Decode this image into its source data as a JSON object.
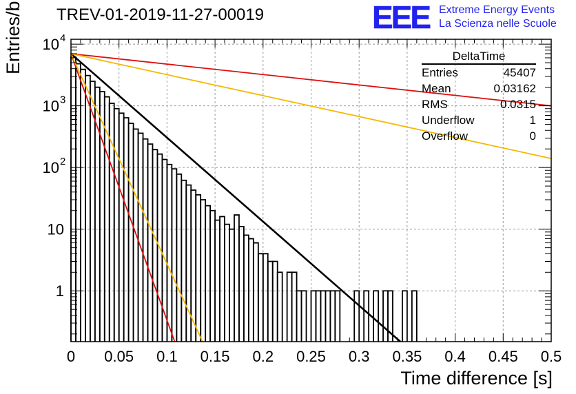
{
  "title": "TREV-01-2019-11-27-00019",
  "logo": {
    "mark": "EEE",
    "line1": "Extreme Energy Events",
    "line2": "La Scienza nelle Scuole",
    "color": "#2222ee"
  },
  "stats_box": {
    "title": "DeltaTime",
    "rows": [
      {
        "label": "Entries",
        "value": "45407"
      },
      {
        "label": "Mean",
        "value": "0.03162"
      },
      {
        "label": "RMS",
        "value": "0.0315"
      },
      {
        "label": "Underflow",
        "value": "1"
      },
      {
        "label": "Overflow",
        "value": "0"
      }
    ]
  },
  "chart_data": {
    "type": "line",
    "title": "TREV-01-2019-11-27-00019",
    "xlabel": "Time difference [s]",
    "ylabel": "Entries/bin",
    "xlim": [
      0,
      0.5
    ],
    "ylim": [
      0.15,
      12000
    ],
    "log_y": true,
    "grid": true,
    "x_ticks": [
      0,
      0.05,
      0.1,
      0.15,
      0.2,
      0.25,
      0.3,
      0.35,
      0.4,
      0.45,
      0.5
    ],
    "x_tick_labels": [
      "0",
      "0.05",
      "0.1",
      "0.15",
      "0.2",
      "0.25",
      "0.3",
      "0.35",
      "0.4",
      "0.45",
      "0.5"
    ],
    "y_ticks": [
      1,
      10,
      100,
      1000,
      10000
    ],
    "y_tick_labels": [
      {
        "base": "1",
        "exp": ""
      },
      {
        "base": "10",
        "exp": ""
      },
      {
        "base": "10",
        "exp": "2"
      },
      {
        "base": "10",
        "exp": "3"
      },
      {
        "base": "10",
        "exp": "4"
      }
    ],
    "histogram": {
      "bin_width": 0.005,
      "color": "#000000",
      "bins": [
        {
          "x": 0.0,
          "y": 6200
        },
        {
          "x": 0.005,
          "y": 4800
        },
        {
          "x": 0.01,
          "y": 3900
        },
        {
          "x": 0.015,
          "y": 3100
        },
        {
          "x": 0.02,
          "y": 2500
        },
        {
          "x": 0.025,
          "y": 2000
        },
        {
          "x": 0.03,
          "y": 1700
        },
        {
          "x": 0.035,
          "y": 1400
        },
        {
          "x": 0.04,
          "y": 1100
        },
        {
          "x": 0.045,
          "y": 900
        },
        {
          "x": 0.05,
          "y": 760
        },
        {
          "x": 0.055,
          "y": 640
        },
        {
          "x": 0.06,
          "y": 520
        },
        {
          "x": 0.065,
          "y": 420
        },
        {
          "x": 0.07,
          "y": 360
        },
        {
          "x": 0.075,
          "y": 290
        },
        {
          "x": 0.08,
          "y": 240
        },
        {
          "x": 0.085,
          "y": 195
        },
        {
          "x": 0.09,
          "y": 165
        },
        {
          "x": 0.095,
          "y": 135
        },
        {
          "x": 0.1,
          "y": 112
        },
        {
          "x": 0.105,
          "y": 95
        },
        {
          "x": 0.11,
          "y": 78
        },
        {
          "x": 0.115,
          "y": 62
        },
        {
          "x": 0.12,
          "y": 52
        },
        {
          "x": 0.125,
          "y": 43
        },
        {
          "x": 0.13,
          "y": 36
        },
        {
          "x": 0.135,
          "y": 30
        },
        {
          "x": 0.14,
          "y": 24
        },
        {
          "x": 0.145,
          "y": 20
        },
        {
          "x": 0.15,
          "y": 14
        },
        {
          "x": 0.155,
          "y": 16
        },
        {
          "x": 0.16,
          "y": 12
        },
        {
          "x": 0.165,
          "y": 10
        },
        {
          "x": 0.17,
          "y": 17
        },
        {
          "x": 0.175,
          "y": 11
        },
        {
          "x": 0.18,
          "y": 8
        },
        {
          "x": 0.185,
          "y": 7
        },
        {
          "x": 0.19,
          "y": 6
        },
        {
          "x": 0.195,
          "y": 4
        },
        {
          "x": 0.2,
          "y": 4
        },
        {
          "x": 0.205,
          "y": 3
        },
        {
          "x": 0.21,
          "y": 3
        },
        {
          "x": 0.215,
          "y": 2
        },
        {
          "x": 0.225,
          "y": 2
        },
        {
          "x": 0.23,
          "y": 2
        },
        {
          "x": 0.235,
          "y": 1
        },
        {
          "x": 0.24,
          "y": 1
        },
        {
          "x": 0.25,
          "y": 1
        },
        {
          "x": 0.255,
          "y": 1
        },
        {
          "x": 0.26,
          "y": 1
        },
        {
          "x": 0.265,
          "y": 1
        },
        {
          "x": 0.27,
          "y": 1
        },
        {
          "x": 0.275,
          "y": 1
        },
        {
          "x": 0.295,
          "y": 1
        },
        {
          "x": 0.305,
          "y": 1
        },
        {
          "x": 0.315,
          "y": 1
        },
        {
          "x": 0.325,
          "y": 1
        },
        {
          "x": 0.33,
          "y": 1
        },
        {
          "x": 0.345,
          "y": 1
        },
        {
          "x": 0.355,
          "y": 1
        }
      ]
    },
    "series": [
      {
        "type": "fit",
        "color": "#000000",
        "x": [
          0,
          0.343
        ],
        "y": [
          7000,
          0.15
        ]
      },
      {
        "type": "bound",
        "color": "#dd1111",
        "x": [
          0,
          0.108
        ],
        "y": [
          7000,
          0.15
        ]
      },
      {
        "type": "bound",
        "color": "#f5b800",
        "x": [
          0,
          0.137
        ],
        "y": [
          7000,
          0.15
        ]
      },
      {
        "type": "bound",
        "color": "#dd1111",
        "x": [
          0,
          0.5
        ],
        "y": [
          7000,
          1000
        ]
      },
      {
        "type": "bound",
        "color": "#f5b800",
        "x": [
          0,
          0.5
        ],
        "y": [
          7000,
          140
        ]
      }
    ]
  }
}
